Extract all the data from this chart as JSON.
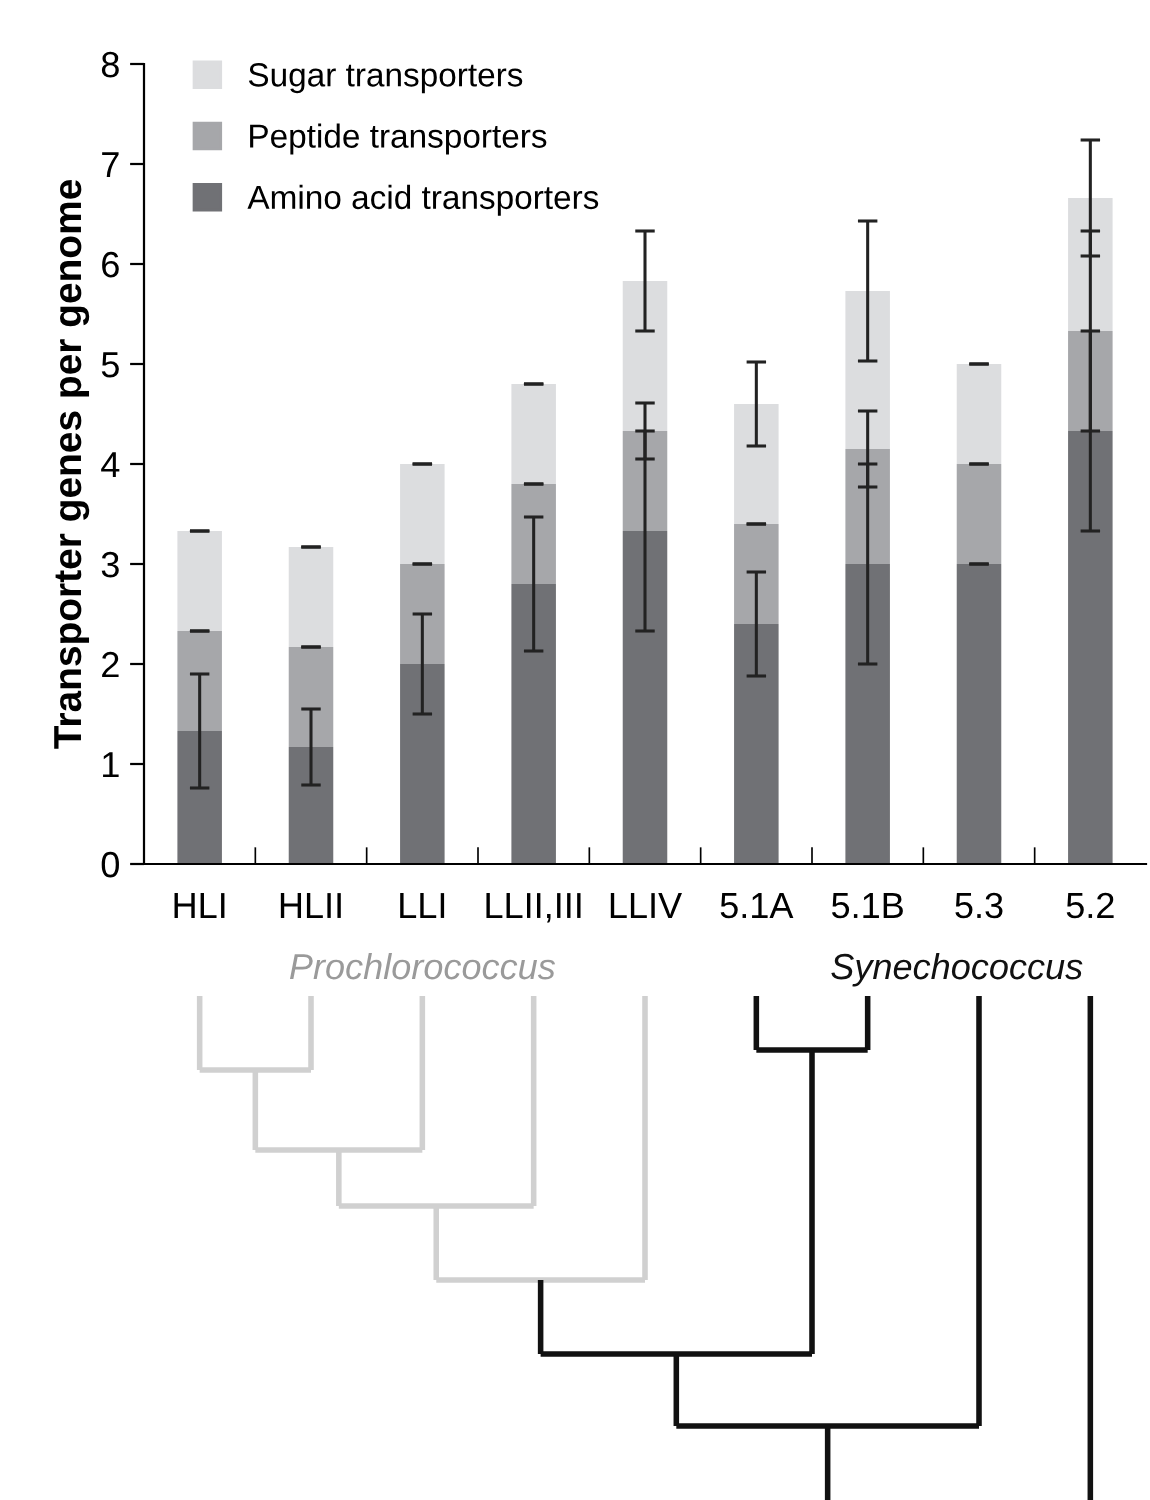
{
  "chart_data": {
    "type": "bar",
    "stacked": true,
    "ylabel": "Transporter genes per genome",
    "categories": [
      "HLI",
      "HLII",
      "LLI",
      "LLII,III",
      "LLIV",
      "5.1A",
      "5.1B",
      "5.3",
      "5.2"
    ],
    "series": [
      {
        "name": "Amino acid transporters",
        "color": "#707175",
        "values": [
          1.33,
          1.17,
          2.0,
          2.8,
          3.33,
          2.4,
          3.0,
          3.0,
          4.33
        ],
        "errors": [
          0.57,
          0.38,
          0.5,
          0.67,
          1.0,
          0.52,
          1.0,
          0,
          1.0
        ]
      },
      {
        "name": "Peptide transporters",
        "color": "#a6a7aa",
        "values": [
          1.0,
          1.0,
          1.0,
          1.0,
          1.0,
          1.0,
          1.15,
          1.0,
          1.0
        ],
        "errors": [
          0,
          0,
          0,
          0,
          0.28,
          0,
          0.38,
          0,
          1.0
        ]
      },
      {
        "name": "Sugar transporters",
        "color": "#dcdddf",
        "values": [
          1.0,
          1.0,
          1.0,
          1.0,
          1.5,
          1.2,
          1.58,
          1.0,
          1.33
        ],
        "errors": [
          0,
          0,
          0,
          0,
          0.5,
          0.42,
          0.7,
          0,
          0.58
        ]
      }
    ],
    "ylim": [
      0,
      8
    ],
    "yticks": [
      0,
      1,
      2,
      3,
      4,
      5,
      6,
      7,
      8
    ],
    "legend": "top left",
    "grid": false,
    "annotations": [
      "Prochlorococcus",
      "Synechococcus"
    ]
  }
}
